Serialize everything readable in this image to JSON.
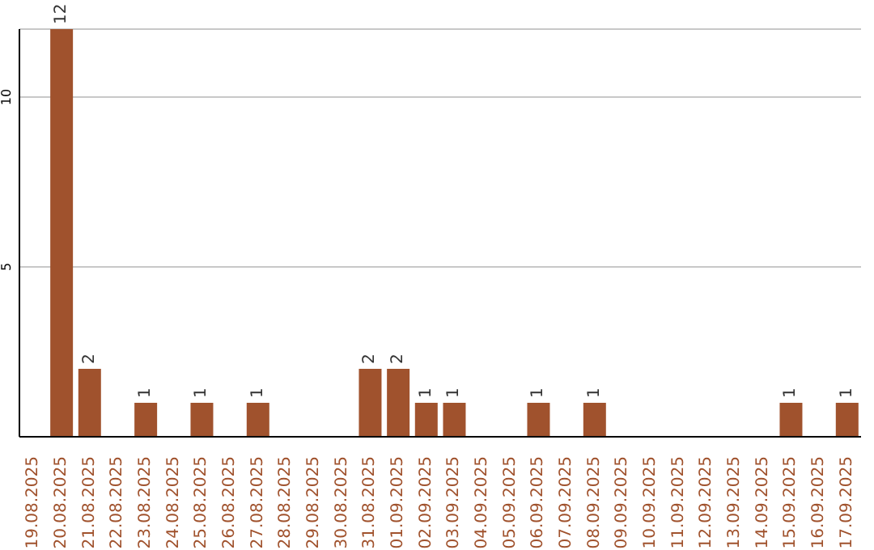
{
  "chart_data": {
    "type": "bar",
    "categories": [
      "19.08.2025",
      "20.08.2025",
      "21.08.2025",
      "22.08.2025",
      "23.08.2025",
      "24.08.2025",
      "25.08.2025",
      "26.08.2025",
      "27.08.2025",
      "28.08.2025",
      "29.08.2025",
      "30.08.2025",
      "31.08.2025",
      "01.09.2025",
      "02.09.2025",
      "03.09.2025",
      "04.09.2025",
      "05.09.2025",
      "06.09.2025",
      "07.09.2025",
      "08.09.2025",
      "09.09.2025",
      "10.09.2025",
      "11.09.2025",
      "12.09.2025",
      "13.09.2025",
      "14.09.2025",
      "15.09.2025",
      "16.09.2025",
      "17.09.2025"
    ],
    "values": [
      0,
      12,
      2,
      0,
      1,
      0,
      1,
      0,
      1,
      0,
      0,
      0,
      2,
      2,
      1,
      1,
      0,
      0,
      1,
      0,
      1,
      0,
      0,
      0,
      0,
      0,
      0,
      1,
      0,
      1
    ],
    "value_labels": [
      null,
      "12",
      "2",
      null,
      "1",
      null,
      "1",
      null,
      "1",
      null,
      null,
      null,
      "2",
      "2",
      "1",
      "1",
      null,
      null,
      "1",
      null,
      "1",
      null,
      null,
      null,
      null,
      null,
      null,
      "1",
      null,
      "1"
    ],
    "color": "#a0522d",
    "ylim": [
      0,
      12
    ],
    "yticks": [
      5,
      10
    ],
    "grid": "y"
  }
}
